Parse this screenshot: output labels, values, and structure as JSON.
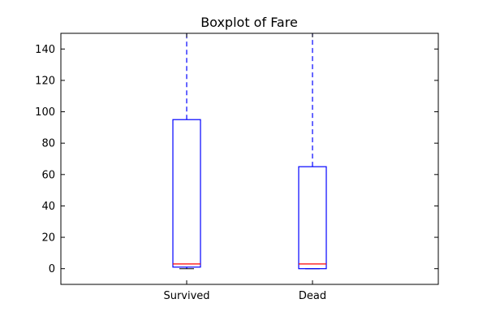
{
  "chart_data": {
    "type": "boxplot",
    "title": "Boxplot of Fare",
    "xlabel": "",
    "ylabel": "",
    "ylim": [
      -10,
      150
    ],
    "yticks": [
      0,
      20,
      40,
      60,
      80,
      100,
      120,
      140
    ],
    "grid": false,
    "categories": [
      "Survived",
      "Dead"
    ],
    "boxes": [
      {
        "category": "Survived",
        "min": 0,
        "q1": 1,
        "median": 3,
        "q3": 95,
        "max": 150
      },
      {
        "category": "Dead",
        "min": 0,
        "q1": 0,
        "median": 3,
        "q3": 65,
        "max": 150
      }
    ],
    "colors": {
      "box": "#0000ff",
      "median": "#ff0000",
      "whisker": "#0000ff",
      "axes": "#000000"
    }
  }
}
